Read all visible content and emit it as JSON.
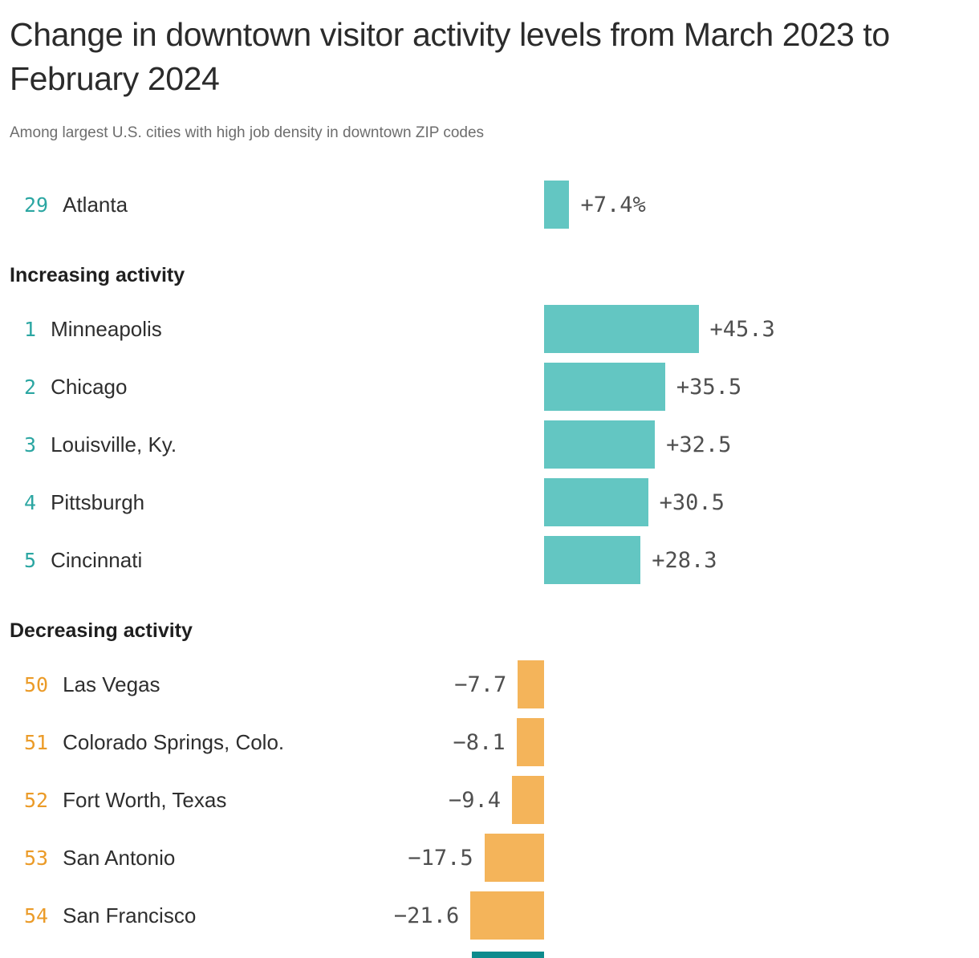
{
  "chart_data": {
    "type": "bar",
    "orientation": "horizontal",
    "title": "Change in downtown visitor activity levels from March 2023 to February 2024",
    "subtitle": "Among largest U.S. cities with high job density in downtown ZIP codes",
    "unit": "%",
    "legend": "none",
    "grid": false,
    "colors": {
      "positive_bar": "#63c6c2",
      "negative_bar": "#f4b45a",
      "positive_rank": "#2ba6a2",
      "negative_rank": "#eb9b28",
      "value_text": "#4f4f4f",
      "footer_strip": "#0d8b8d"
    },
    "groups": [
      {
        "header": "",
        "items": [
          {
            "rank": "29",
            "city": "Atlanta",
            "value": 7.4,
            "label": "+7.4%"
          }
        ]
      },
      {
        "header": "Increasing activity",
        "items": [
          {
            "rank": "1",
            "city": "Minneapolis",
            "value": 45.3,
            "label": "+45.3"
          },
          {
            "rank": "2",
            "city": "Chicago",
            "value": 35.5,
            "label": "+35.5"
          },
          {
            "rank": "3",
            "city": "Louisville, Ky.",
            "value": 32.5,
            "label": "+32.5"
          },
          {
            "rank": "4",
            "city": "Pittsburgh",
            "value": 30.5,
            "label": "+30.5"
          },
          {
            "rank": "5",
            "city": "Cincinnati",
            "value": 28.3,
            "label": "+28.3"
          }
        ]
      },
      {
        "header": "Decreasing activity",
        "items": [
          {
            "rank": "50",
            "city": "Las Vegas",
            "value": -7.7,
            "label": "−7.7"
          },
          {
            "rank": "51",
            "city": "Colorado Springs, Colo.",
            "value": -8.1,
            "label": "−8.1"
          },
          {
            "rank": "52",
            "city": "Fort Worth, Texas",
            "value": -9.4,
            "label": "−9.4"
          },
          {
            "rank": "53",
            "city": "San Antonio",
            "value": -17.5,
            "label": "−17.5"
          },
          {
            "rank": "54",
            "city": "San Francisco",
            "value": -21.6,
            "label": "−21.6"
          }
        ]
      }
    ]
  }
}
